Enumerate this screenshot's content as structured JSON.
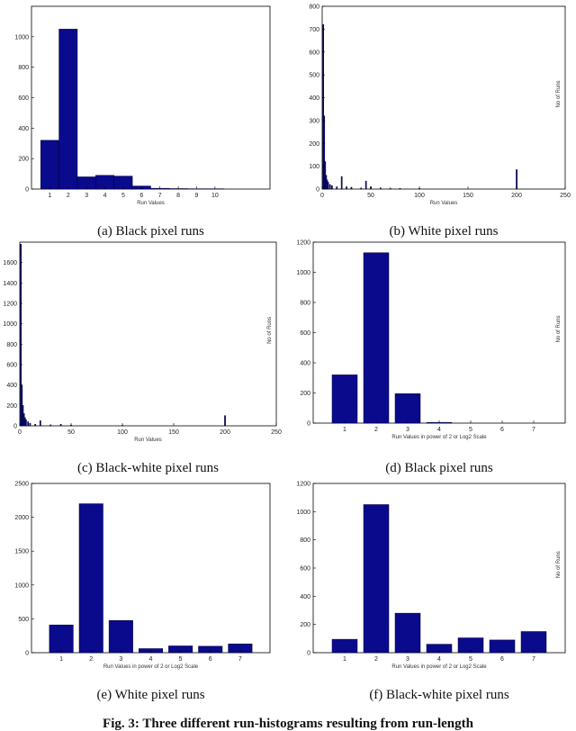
{
  "figure_caption": "Fig. 3: Three different run-histograms resulting from run-length",
  "colors": {
    "bar": "#0a0a8c",
    "bar_stroke": "#000033",
    "axis": "#000000"
  },
  "chart_data": [
    {
      "id": "a",
      "type": "bar",
      "caption": "(a) Black pixel runs",
      "xlabel": "Run Values",
      "ylabel": "",
      "xlim": [
        0,
        13
      ],
      "ylim": [
        0,
        1200
      ],
      "xticks": [
        1,
        2,
        3,
        4,
        5,
        6,
        7,
        8,
        9,
        10
      ],
      "yticks": [
        0,
        200,
        400,
        600,
        800,
        1000
      ],
      "bar_width": 1,
      "x": [
        1,
        2,
        3,
        4,
        5,
        6,
        7,
        8,
        9,
        10
      ],
      "values": [
        320,
        1050,
        80,
        90,
        85,
        20,
        5,
        3,
        2,
        2
      ]
    },
    {
      "id": "b",
      "type": "bar",
      "caption": "(b) White pixel runs",
      "xlabel": "Run Values",
      "ylabel": "No of Runs",
      "xlim": [
        0,
        250
      ],
      "ylim": [
        0,
        800
      ],
      "xticks": [
        0,
        50,
        100,
        150,
        200,
        250
      ],
      "yticks": [
        0,
        100,
        200,
        300,
        400,
        500,
        600,
        700,
        800
      ],
      "bar_width": 1,
      "x": [
        1,
        2,
        3,
        4,
        5,
        6,
        8,
        10,
        15,
        20,
        25,
        30,
        40,
        45,
        50,
        60,
        70,
        80,
        100,
        200
      ],
      "values": [
        720,
        320,
        120,
        60,
        40,
        30,
        20,
        15,
        10,
        55,
        10,
        8,
        5,
        35,
        10,
        5,
        4,
        3,
        3,
        85
      ]
    },
    {
      "id": "c",
      "type": "bar",
      "caption": "(c) Black-white pixel runs",
      "xlabel": "Run Values",
      "ylabel": "No of Runs",
      "xlim": [
        0,
        250
      ],
      "ylim": [
        0,
        1800
      ],
      "xticks": [
        0,
        50,
        100,
        150,
        200,
        250
      ],
      "yticks": [
        0,
        200,
        400,
        600,
        800,
        1000,
        1200,
        1400,
        1600
      ],
      "bar_width": 1,
      "x": [
        1,
        2,
        3,
        4,
        5,
        6,
        8,
        10,
        15,
        20,
        30,
        40,
        50,
        100,
        200
      ],
      "values": [
        1780,
        400,
        200,
        120,
        80,
        60,
        40,
        25,
        15,
        50,
        10,
        15,
        8,
        5,
        100
      ]
    },
    {
      "id": "d",
      "type": "bar",
      "caption": "(d) Black pixel runs",
      "xlabel": "Run Values in power of 2 or Log2 Scale",
      "ylabel": "No of Runs",
      "xlim": [
        0,
        8
      ],
      "ylim": [
        0,
        1200
      ],
      "xticks": [
        1,
        2,
        3,
        4,
        5,
        6,
        7
      ],
      "yticks": [
        0,
        200,
        400,
        600,
        800,
        1000,
        1200
      ],
      "bar_width": 0.8,
      "x": [
        1,
        2,
        3,
        4,
        5,
        6,
        7
      ],
      "values": [
        320,
        1130,
        195,
        5,
        0,
        0,
        0
      ]
    },
    {
      "id": "e",
      "type": "bar",
      "caption": "(e) White pixel runs",
      "xlabel": "Run Values in power of 2 or Log2 Scale",
      "ylabel": "",
      "xlim": [
        0,
        8
      ],
      "ylim": [
        0,
        2500
      ],
      "xticks": [
        1,
        2,
        3,
        4,
        5,
        6,
        7
      ],
      "yticks": [
        0,
        500,
        1000,
        1500,
        2000,
        2500
      ],
      "bar_width": 0.8,
      "x": [
        1,
        2,
        3,
        4,
        5,
        6,
        7
      ],
      "values": [
        410,
        2200,
        475,
        60,
        100,
        95,
        130
      ]
    },
    {
      "id": "f",
      "type": "bar",
      "caption": "(f) Black-white pixel runs",
      "xlabel": "Run Values in power of 2 or Log2 Scale",
      "ylabel": "No of Runs",
      "xlim": [
        0,
        8
      ],
      "ylim": [
        0,
        1200
      ],
      "xticks": [
        1,
        2,
        3,
        4,
        5,
        6,
        7
      ],
      "yticks": [
        0,
        200,
        400,
        600,
        800,
        1000,
        1200
      ],
      "bar_width": 0.8,
      "x": [
        1,
        2,
        3,
        4,
        5,
        6,
        7
      ],
      "values": [
        95,
        1050,
        280,
        60,
        105,
        90,
        150
      ]
    }
  ]
}
